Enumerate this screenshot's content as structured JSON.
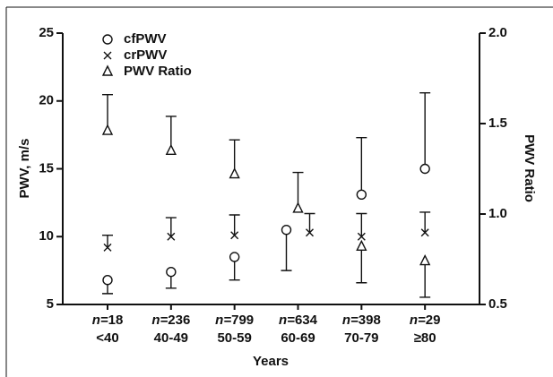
{
  "chart_data": {
    "type": "errorbar",
    "categories": [
      "<40",
      "40-49",
      "50-59",
      "60-69",
      "70-79",
      "≥80"
    ],
    "n_label": "n=",
    "sample_sizes": [
      18,
      236,
      799,
      634,
      398,
      29
    ],
    "x_label": "Years",
    "y_label": "PWV, m/s",
    "y2_label": "PWV Ratio",
    "ylim": [
      5,
      25
    ],
    "yticks": [
      5,
      10,
      15,
      20,
      25
    ],
    "y2lim": [
      0.5,
      2.0
    ],
    "y2ticks": [
      {
        "value": 0.5,
        "label": "0.5"
      },
      {
        "value": 1.0,
        "label": "1.0"
      },
      {
        "value": 1.5,
        "label": "1.5"
      },
      {
        "value": 2.0,
        "label": "2.0"
      }
    ],
    "series": [
      {
        "name": "cfPWV",
        "marker": "circle",
        "values": [
          6.8,
          7.4,
          8.5,
          10.5,
          13.1,
          15.0
        ],
        "error_lower": [
          1.0,
          1.2,
          1.7,
          3.0,
          null,
          null
        ],
        "error_upper": [
          null,
          null,
          null,
          null,
          4.2,
          5.6
        ]
      },
      {
        "name": "crPWV",
        "marker": "x",
        "values": [
          9.2,
          10.0,
          10.1,
          10.3,
          10.0,
          10.3
        ],
        "error_lower": [
          null,
          null,
          null,
          null,
          null,
          null
        ],
        "error_upper": [
          0.9,
          1.4,
          1.5,
          1.4,
          1.7,
          1.5
        ]
      },
      {
        "name": "PWV Ratio",
        "marker": "triangle",
        "axis": "y2",
        "values": [
          1.46,
          1.35,
          1.22,
          1.03,
          0.82,
          0.74
        ],
        "error_lower": [
          null,
          null,
          null,
          null,
          0.2,
          0.2
        ],
        "error_upper": [
          0.2,
          0.19,
          0.19,
          0.2,
          null,
          null
        ]
      }
    ]
  }
}
